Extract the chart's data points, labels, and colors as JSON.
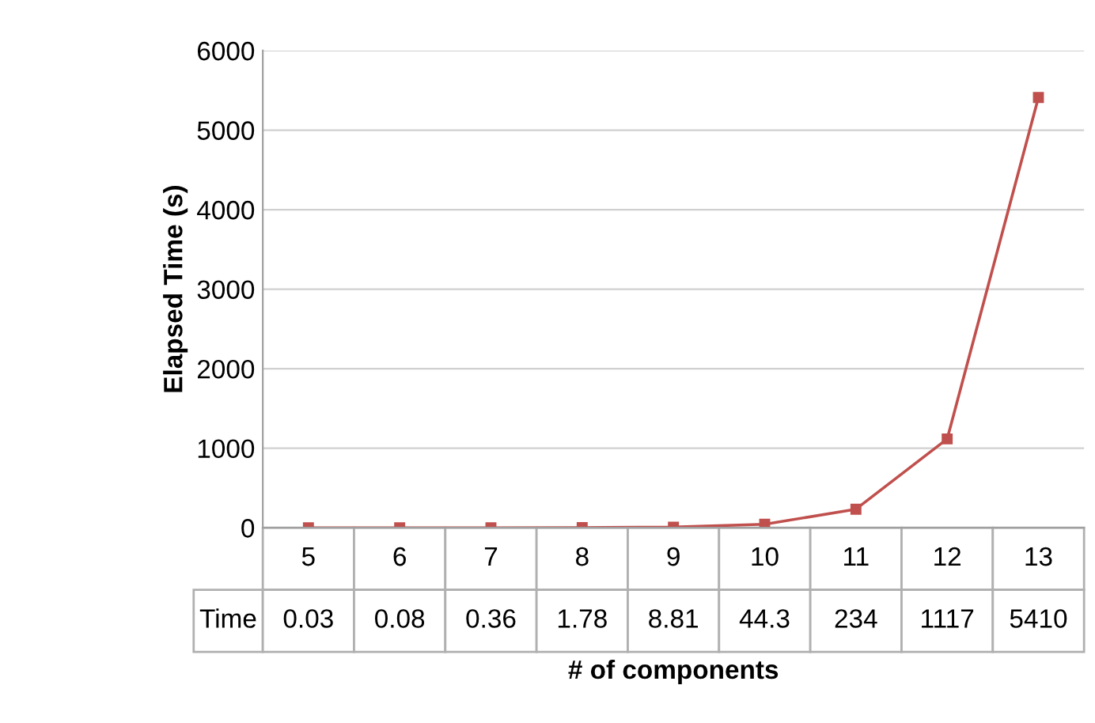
{
  "chart_data": {
    "type": "line",
    "xlabel": "# of components",
    "ylabel": "Elapsed Time (s)",
    "categories": [
      "5",
      "6",
      "7",
      "8",
      "9",
      "10",
      "11",
      "12",
      "13"
    ],
    "series": [
      {
        "name": "Time",
        "color": "#c0504d",
        "values": [
          0.03,
          0.08,
          0.36,
          1.78,
          8.81,
          44.3,
          234,
          1117,
          5410
        ]
      }
    ],
    "ylim": [
      0,
      6000
    ],
    "yticks": [
      0,
      1000,
      2000,
      3000,
      4000,
      5000,
      6000
    ],
    "grid": "y",
    "marker": "square",
    "line_style": "solid",
    "data_labels": true,
    "legend": false
  }
}
